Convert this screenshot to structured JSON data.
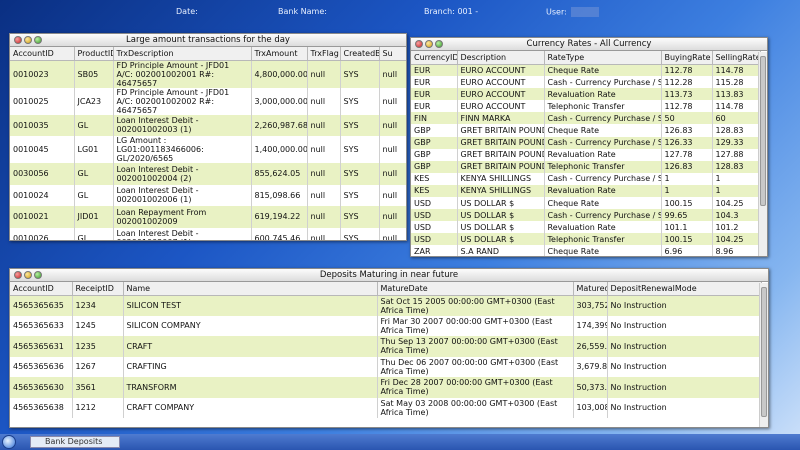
{
  "topbar": {
    "date_label": "Date:",
    "bank_label": "Bank Name:",
    "branch_label": "Branch: 001 -",
    "user_label": "User:"
  },
  "large_txn": {
    "title": "Large amount transactions for the day",
    "columns": [
      "AccountID",
      "ProductID",
      "TrxDescription",
      "TrxAmount",
      "TrxFlag",
      "CreatedBy",
      "Su"
    ],
    "rows": [
      [
        "0010023",
        "SB05",
        "FD Principle Amount - JFD01 A/C: 002001002001  R#: 46475657",
        "4,800,000.00",
        "null",
        "SYS",
        "null"
      ],
      [
        "0010025",
        "JCA23",
        "FD Principle Amount - JFD01 A/C: 002001002002  R#: 46475657",
        "3,000,000.00",
        "null",
        "SYS",
        "null"
      ],
      [
        "0010035",
        "GL",
        "Loan Interest Debit - 002001002003 (1)",
        "2,260,987.68",
        "null",
        "SYS",
        "null"
      ],
      [
        "0010045",
        "LG01",
        "LG Amount : LG01:001183466006: GL/2020/6565",
        "1,400,000.00",
        "null",
        "SYS",
        "null"
      ],
      [
        "0030056",
        "GL",
        "Loan Interest Debit - 002001002004 (2)",
        "855,624.05",
        "null",
        "SYS",
        "null"
      ],
      [
        "0010024",
        "GL",
        "Loan Interest Debit - 002001002006 (1)",
        "815,098.66",
        "null",
        "SYS",
        "null"
      ],
      [
        "0010021",
        "JID01",
        "Loan Repayment From 002001002009",
        "619,194.22",
        "null",
        "SYS",
        "null"
      ],
      [
        "0010026",
        "GL",
        "Loan Interest Debit - 002001002007 (1)",
        "600,745.46",
        "null",
        "SYS",
        "null"
      ],
      [
        "0010056",
        "LG01",
        "LG Amount : LG01:002001002002 :gl/2020/8765",
        "500,000.00",
        "null",
        "SYS",
        "null"
      ]
    ]
  },
  "currency": {
    "title": "Currency Rates - All Currency",
    "columns": [
      "CurrencyID",
      "Description",
      "RateType",
      "BuyingRate",
      "SellingRate"
    ],
    "rows": [
      [
        "EUR",
        "EURO ACCOUNT",
        "Cheque Rate",
        "112.78",
        "114.78"
      ],
      [
        "EUR",
        "EURO ACCOUNT",
        "Cash - Currency Purchase / Sell",
        "112.28",
        "115.28"
      ],
      [
        "EUR",
        "EURO ACCOUNT",
        "Revaluation Rate",
        "113.73",
        "113.83"
      ],
      [
        "EUR",
        "EURO ACCOUNT",
        "Telephonic Transfer",
        "112.78",
        "114.78"
      ],
      [
        "FIN",
        "FINN MARKA",
        "Cash - Currency Purchase / Sell",
        "50",
        "60"
      ],
      [
        "GBP",
        "GRET BRITAIN POUND",
        "Cheque Rate",
        "126.83",
        "128.83"
      ],
      [
        "GBP",
        "GRET BRITAIN POUND",
        "Cash - Currency Purchase / Sell",
        "126.33",
        "129.33"
      ],
      [
        "GBP",
        "GRET BRITAIN POUND",
        "Revaluation Rate",
        "127.78",
        "127.88"
      ],
      [
        "GBP",
        "GRET BRITAIN POUND",
        "Telephonic Transfer",
        "126.83",
        "128.83"
      ],
      [
        "KES",
        "KENYA SHILLINGS",
        "Cash - Currency Purchase / Sell",
        "1",
        "1"
      ],
      [
        "KES",
        "KENYA SHILLINGS",
        "Revaluation Rate",
        "1",
        "1"
      ],
      [
        "USD",
        "US DOLLAR $",
        "Cheque Rate",
        "100.15",
        "104.25"
      ],
      [
        "USD",
        "US DOLLAR $",
        "Cash - Currency Purchase / Sell",
        "99.65",
        "104.3"
      ],
      [
        "USD",
        "US DOLLAR $",
        "Revaluation Rate",
        "101.1",
        "101.2"
      ],
      [
        "USD",
        "US DOLLAR $",
        "Telephonic Transfer",
        "100.15",
        "104.25"
      ],
      [
        "ZAR",
        "S.A RAND",
        "Cheque Rate",
        "6.96",
        "8.96"
      ]
    ]
  },
  "deposits": {
    "title": "Deposits Maturing in near future",
    "columns": [
      "AccountID",
      "ReceiptID",
      "Name",
      "MatureDate",
      "MaturedAmount",
      "DepositRenewalMode"
    ],
    "rows": [
      [
        "4565365635",
        "1234",
        "SILICON TEST",
        "Sat Oct 15 2005 00:00:00 GMT+0300 (East Africa Time)",
        "303,752.62",
        "No Instruction"
      ],
      [
        "4565365633",
        "1245",
        "SILICON COMPANY",
        "Fri Mar 30 2007 00:00:00 GMT+0300 (East Africa Time)",
        "174,399.99",
        "No Instruction"
      ],
      [
        "4565365631",
        "1235",
        "CRAFT",
        "Thu Sep 13 2007 00:00:00 GMT+0300 (East Africa Time)",
        "26,559.47",
        "No Instruction"
      ],
      [
        "4565365636",
        "1267",
        "CRAFTING",
        "Thu Dec 06 2007 00:00:00 GMT+0300 (East Africa Time)",
        "3,679.82",
        "No Instruction"
      ],
      [
        "4565365630",
        "3561",
        "TRANSFORM",
        "Fri Dec 28 2007 00:00:00 GMT+0300 (East Africa Time)",
        "50,373.97",
        "No Instruction"
      ],
      [
        "4565365638",
        "1212",
        "CRAFT COMPANY",
        "Sat May 03 2008 00:00:00 GMT+0300 (East Africa Time)",
        "103,008.22",
        "No Instruction"
      ]
    ]
  },
  "taskbar": {
    "task_label": "Bank Deposits"
  },
  "colors": {
    "row_alt": "#e9f2c4",
    "desktop": "#1c56c4"
  }
}
